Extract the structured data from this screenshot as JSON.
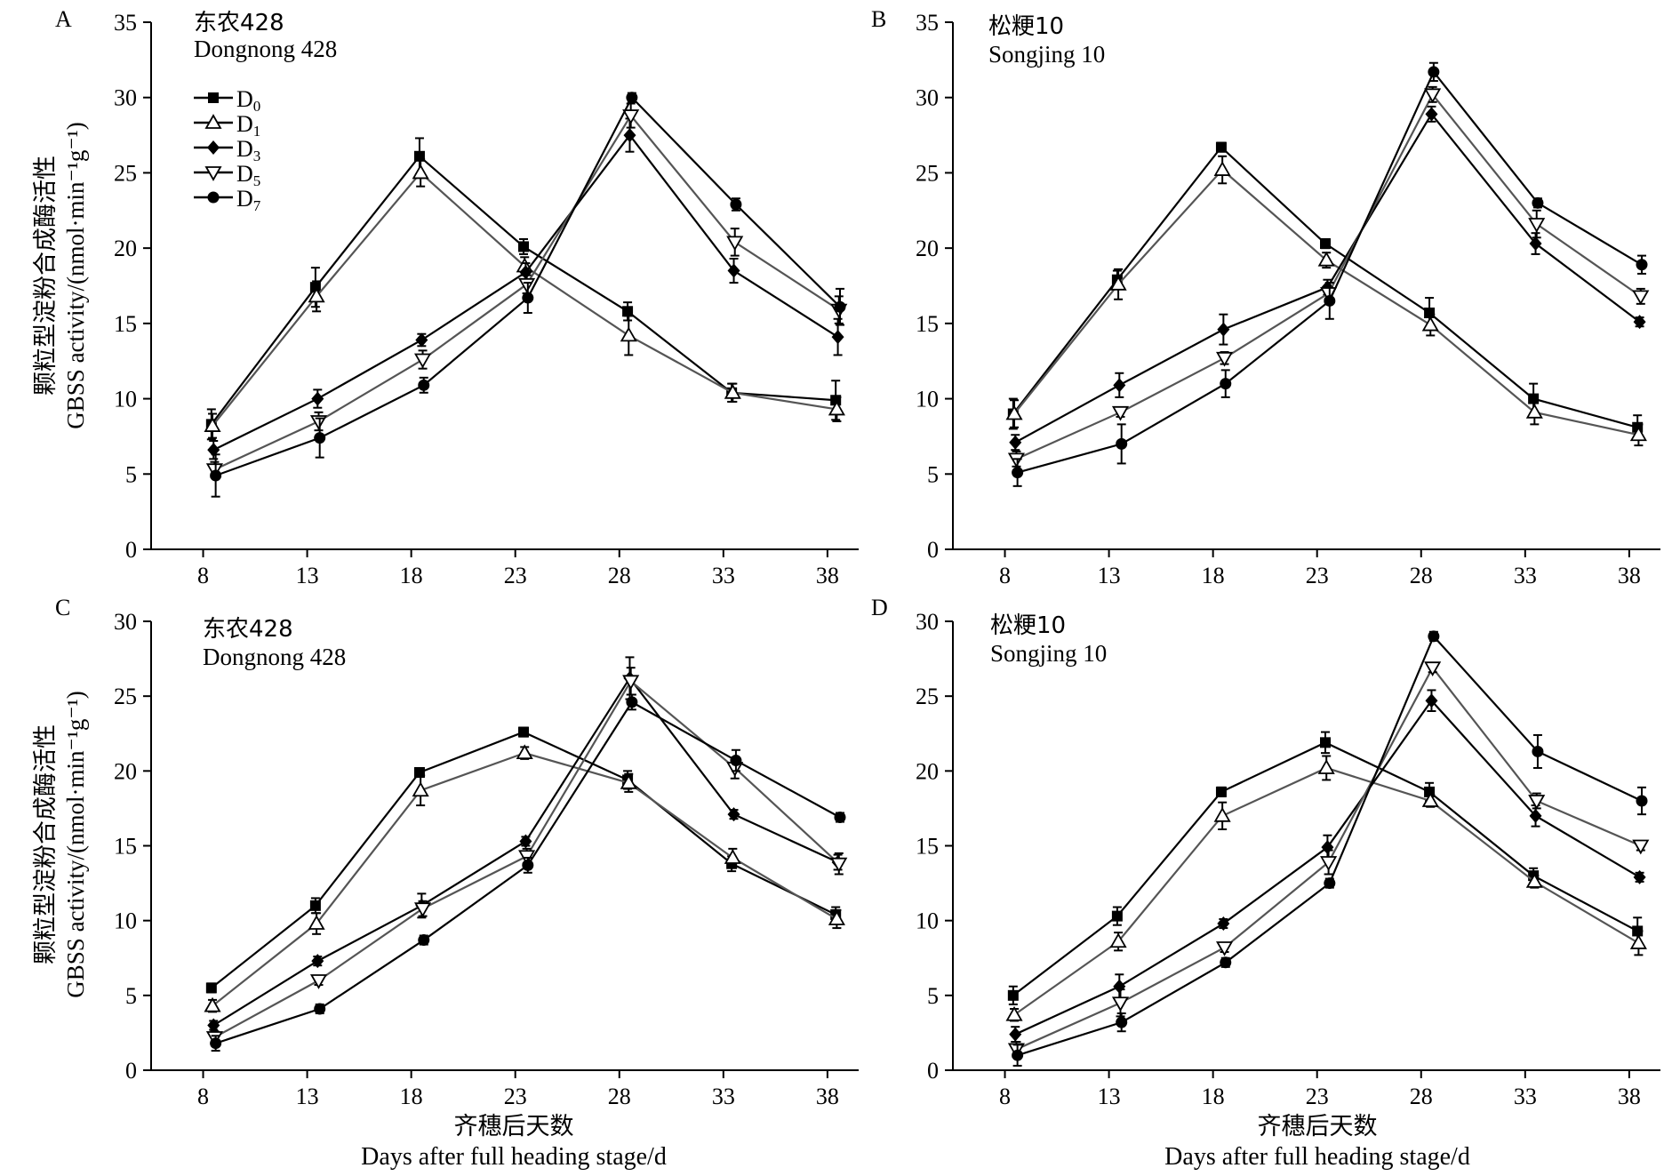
{
  "figure": {
    "xlabel_cn": "齐穗后天数",
    "xlabel_en": "Days after full heading stage/d",
    "ylabel_cn": "颗粒型淀粉合成酶活性",
    "ylabel_en": "GBSS activity/(nmol·min⁻¹g⁻¹)"
  },
  "legend": {
    "items": [
      {
        "label": "D",
        "sub": "0",
        "marker": "square-filled"
      },
      {
        "label": "D",
        "sub": "1",
        "marker": "triangle-up-open"
      },
      {
        "label": "D",
        "sub": "3",
        "marker": "diamond-filled"
      },
      {
        "label": "D",
        "sub": "5",
        "marker": "triangle-down-open"
      },
      {
        "label": "D",
        "sub": "7",
        "marker": "circle-filled"
      }
    ]
  },
  "chart_data": [
    {
      "type": "line",
      "panel": "A",
      "cultivar_cn": "东农428",
      "cultivar_en": "Dongnong 428",
      "x": [
        8,
        13,
        18,
        23,
        28,
        33,
        38
      ],
      "xticks": [
        "8",
        "13",
        "18",
        "23",
        "28",
        "33",
        "38"
      ],
      "ylim": [
        0,
        35
      ],
      "yticks": [
        0,
        5,
        10,
        15,
        20,
        25,
        30,
        35
      ],
      "series": [
        {
          "name": "D0",
          "marker": "square-filled",
          "values": [
            8.3,
            17.4,
            26.1,
            20.1,
            15.8,
            10.4,
            9.9
          ],
          "err": [
            1.0,
            1.3,
            1.2,
            0.5,
            0.6,
            0.6,
            1.3
          ]
        },
        {
          "name": "D1",
          "marker": "triangle-up-open",
          "values": [
            8.2,
            16.8,
            25.0,
            18.8,
            14.2,
            10.4,
            9.3
          ],
          "err": [
            0.8,
            1.0,
            0.9,
            0.6,
            1.3,
            0.6,
            0.8
          ]
        },
        {
          "name": "D3",
          "marker": "diamond-filled",
          "values": [
            6.6,
            10.0,
            13.9,
            18.4,
            27.5,
            18.5,
            14.1
          ],
          "err": [
            0.6,
            0.6,
            0.4,
            0.6,
            1.1,
            0.8,
            1.2
          ]
        },
        {
          "name": "D5",
          "marker": "triangle-down-open",
          "values": [
            5.3,
            8.5,
            12.6,
            17.6,
            28.8,
            20.4,
            15.9
          ],
          "err": [
            0.5,
            0.6,
            0.6,
            0.6,
            0.8,
            0.9,
            0.9
          ]
        },
        {
          "name": "D7",
          "marker": "circle-filled",
          "values": [
            4.9,
            7.4,
            10.9,
            16.7,
            30.0,
            22.9,
            16.1
          ],
          "err": [
            1.4,
            1.3,
            0.5,
            1.0,
            0.3,
            0.4,
            1.2
          ]
        }
      ]
    },
    {
      "type": "line",
      "panel": "B",
      "cultivar_cn": "松粳10",
      "cultivar_en": "Songjing 10",
      "x": [
        8,
        13,
        18,
        23,
        28,
        33,
        38
      ],
      "xticks": [
        "8",
        "13",
        "18",
        "23",
        "28",
        "33",
        "38"
      ],
      "ylim": [
        0,
        35
      ],
      "yticks": [
        0,
        5,
        10,
        15,
        20,
        25,
        30,
        35
      ],
      "series": [
        {
          "name": "D0",
          "marker": "square-filled",
          "values": [
            9.0,
            17.9,
            26.7,
            20.3,
            15.7,
            10.0,
            8.1
          ],
          "err": [
            1.0,
            0.6,
            0.3,
            0.3,
            1.0,
            1.0,
            0.8
          ]
        },
        {
          "name": "D1",
          "marker": "triangle-up-open",
          "values": [
            9.0,
            17.6,
            25.2,
            19.2,
            14.9,
            9.1,
            7.6
          ],
          "err": [
            0.9,
            1.0,
            0.9,
            0.5,
            0.7,
            0.8,
            0.7
          ]
        },
        {
          "name": "D3",
          "marker": "diamond-filled",
          "values": [
            7.1,
            10.9,
            14.6,
            17.4,
            28.9,
            20.3,
            15.1
          ],
          "err": [
            0.5,
            0.8,
            1.0,
            0.5,
            0.5,
            0.7,
            0.3
          ]
        },
        {
          "name": "D5",
          "marker": "triangle-down-open",
          "values": [
            6.0,
            9.1,
            12.7,
            17.0,
            30.2,
            21.6,
            16.8
          ],
          "err": [
            0.5,
            0.3,
            0.4,
            0.4,
            0.5,
            0.9,
            0.5
          ]
        },
        {
          "name": "D7",
          "marker": "circle-filled",
          "values": [
            5.1,
            7.0,
            11.0,
            16.5,
            31.7,
            23.0,
            18.9
          ],
          "err": [
            0.9,
            1.3,
            0.9,
            1.2,
            0.6,
            0.3,
            0.6
          ]
        }
      ]
    },
    {
      "type": "line",
      "panel": "C",
      "cultivar_cn": "东农428",
      "cultivar_en": "Dongnong 428",
      "x": [
        8,
        13,
        18,
        23,
        28,
        33,
        38
      ],
      "xticks": [
        "8",
        "13",
        "18",
        "23",
        "28",
        "33",
        "38"
      ],
      "ylim": [
        0,
        30
      ],
      "yticks": [
        0,
        5,
        10,
        15,
        20,
        25,
        30
      ],
      "series": [
        {
          "name": "D0",
          "marker": "square-filled",
          "values": [
            5.5,
            11.0,
            19.9,
            22.6,
            19.4,
            13.8,
            10.4
          ],
          "err": [
            0.3,
            0.5,
            0.3,
            0.3,
            0.6,
            0.5,
            0.5
          ]
        },
        {
          "name": "D1",
          "marker": "triangle-up-open",
          "values": [
            4.3,
            9.8,
            18.7,
            21.2,
            19.2,
            14.2,
            10.1
          ],
          "err": [
            0.4,
            0.7,
            1.0,
            0.4,
            0.6,
            0.6,
            0.6
          ]
        },
        {
          "name": "D3",
          "marker": "diamond-filled",
          "values": [
            3.0,
            7.3,
            11.0,
            15.3,
            26.2,
            17.1,
            13.9
          ],
          "err": [
            0.3,
            0.3,
            0.8,
            0.3,
            1.4,
            0.3,
            0.5
          ]
        },
        {
          "name": "D5",
          "marker": "triangle-down-open",
          "values": [
            2.2,
            6.0,
            10.8,
            14.3,
            26.0,
            20.2,
            13.8
          ],
          "err": [
            0.4,
            0.3,
            0.5,
            0.5,
            0.9,
            0.7,
            0.7
          ]
        },
        {
          "name": "D7",
          "marker": "circle-filled",
          "values": [
            1.8,
            4.1,
            8.7,
            13.7,
            24.6,
            20.7,
            16.9
          ],
          "err": [
            0.5,
            0.3,
            0.3,
            0.5,
            0.5,
            0.7,
            0.3
          ]
        }
      ]
    },
    {
      "type": "line",
      "panel": "D",
      "cultivar_cn": "松粳10",
      "cultivar_en": "Songjing 10",
      "x": [
        8,
        13,
        18,
        23,
        28,
        33,
        38
      ],
      "xticks": [
        "8",
        "13",
        "18",
        "23",
        "28",
        "33",
        "38"
      ],
      "ylim": [
        0,
        30
      ],
      "yticks": [
        0,
        5,
        10,
        15,
        20,
        25,
        30
      ],
      "series": [
        {
          "name": "D0",
          "marker": "square-filled",
          "values": [
            5.0,
            10.3,
            18.6,
            21.9,
            18.6,
            13.0,
            9.3
          ],
          "err": [
            0.6,
            0.6,
            0.3,
            0.7,
            0.6,
            0.5,
            0.9
          ]
        },
        {
          "name": "D1",
          "marker": "triangle-up-open",
          "values": [
            3.7,
            8.6,
            17.0,
            20.2,
            18.0,
            12.6,
            8.5
          ],
          "err": [
            0.4,
            0.6,
            0.9,
            0.8,
            0.4,
            0.4,
            0.8
          ]
        },
        {
          "name": "D3",
          "marker": "diamond-filled",
          "values": [
            2.4,
            5.6,
            9.8,
            14.9,
            24.7,
            17.0,
            12.9
          ],
          "err": [
            0.5,
            0.8,
            0.3,
            0.8,
            0.7,
            0.7,
            0.3
          ]
        },
        {
          "name": "D5",
          "marker": "triangle-down-open",
          "values": [
            1.4,
            4.5,
            8.2,
            13.9,
            26.9,
            18.0,
            15.0
          ],
          "err": [
            0.5,
            0.9,
            0.3,
            0.8,
            0.3,
            0.5,
            0.3
          ]
        },
        {
          "name": "D7",
          "marker": "circle-filled",
          "values": [
            1.0,
            3.2,
            7.2,
            12.5,
            29.0,
            21.3,
            18.0
          ],
          "err": [
            0.7,
            0.6,
            0.3,
            0.3,
            0.3,
            1.1,
            0.9
          ]
        }
      ]
    }
  ]
}
